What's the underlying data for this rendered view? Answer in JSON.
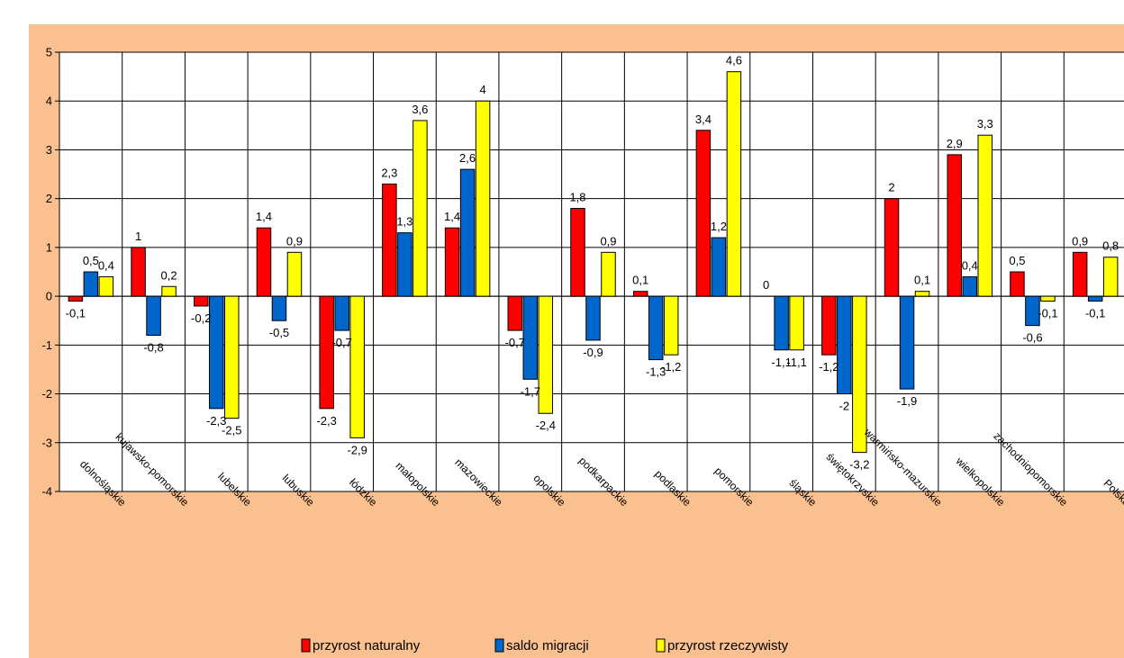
{
  "chart_data": {
    "type": "bar",
    "title": "",
    "xlabel": "",
    "ylabel": "%",
    "ylim": [
      -4,
      5
    ],
    "yticks": [
      -4,
      -3,
      -2,
      -1,
      0,
      1,
      2,
      3,
      4,
      5
    ],
    "grid": true,
    "legend_position": "bottom",
    "categories": [
      "dolnośląskie",
      "kujawsko-pomorskie",
      "lubelskie",
      "lubuskie",
      "łódzkie",
      "małopolskie",
      "mazowieckie",
      "opolskie",
      "podkarpackie",
      "podlaskie",
      "pomorskie",
      "śląskie",
      "świętokrzyskie",
      "warmińsko-mazurskie",
      "wielkopolskie",
      "zachodniopomorskie",
      "Polska"
    ],
    "series": [
      {
        "name": "przyrost naturalny",
        "color": "#FF0000",
        "values": [
          -0.1,
          1,
          -0.2,
          1.4,
          -2.3,
          2.3,
          1.4,
          -0.7,
          1.8,
          0.1,
          3.4,
          0,
          -1.2,
          2,
          2.9,
          0.5,
          0.9
        ]
      },
      {
        "name": "saldo migracji",
        "color": "#0066CC",
        "values": [
          0.5,
          -0.8,
          -2.3,
          -0.5,
          -0.7,
          1.3,
          2.6,
          -1.7,
          -0.9,
          -1.3,
          1.2,
          -1.1,
          -2,
          -1.9,
          0.4,
          -0.6,
          -0.1
        ]
      },
      {
        "name": "przyrost rzeczywisty",
        "color": "#FFFF00",
        "values": [
          0.4,
          0.2,
          -2.5,
          0.9,
          -2.9,
          3.6,
          4,
          -2.4,
          0.9,
          -1.2,
          4.6,
          -1.1,
          -3.2,
          0.1,
          3.3,
          -0.1,
          0.8
        ]
      }
    ]
  }
}
